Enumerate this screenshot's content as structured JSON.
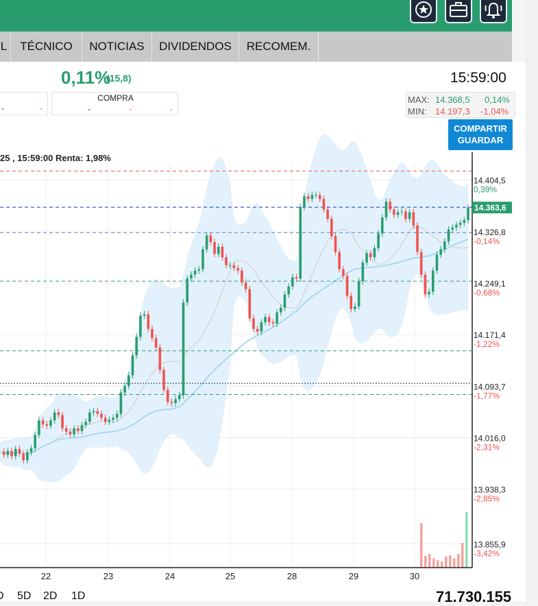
{
  "tabs": [
    "L",
    "TÉCNICO",
    "NOTICIAS",
    "DIVIDENDOS",
    "RECOMEM."
  ],
  "change": {
    "pct": "0,11%",
    "points": "(15,8)"
  },
  "time": "15:59:00",
  "buy_label": "COMPRA",
  "buy_values": [
    "-",
    "-",
    "-",
    "-",
    "-"
  ],
  "stats": {
    "max_label": "MAX:",
    "max_value": "14.368,5",
    "max_pct": "0,14%",
    "min_label": "MIN:",
    "min_value": "14.197,3",
    "min_pct": "-1,04%"
  },
  "share_button": {
    "line1": "COMPARTIR",
    "line2": "GUARDAR"
  },
  "chart_header": "25 , 15:59:00 Renta: 1,98%",
  "periods": [
    "D",
    "5D",
    "2D",
    "1D"
  ],
  "volume_total": "71.730.155",
  "colors": {
    "green": "#2a9d6e",
    "red": "#ef5350",
    "blue": "#1188d6",
    "band": "#d8ecfa"
  },
  "chart_data": {
    "type": "candlestick",
    "x_ticks": [
      "22",
      "23",
      "24",
      "25",
      "28",
      "29",
      "30"
    ],
    "y_ticks": [
      {
        "value": 14404.5,
        "label": "14.404,5",
        "pct": "0,39%"
      },
      {
        "value": 14326.8,
        "label": "14.326,8",
        "pct": "-0,14%"
      },
      {
        "value": 14249.1,
        "label": "14.249,1",
        "pct": "-0,68%"
      },
      {
        "value": 14171.4,
        "label": "14.171,4",
        "pct": "-1,22%"
      },
      {
        "value": 14093.7,
        "label": "14.093,7",
        "pct": "-1,77%"
      },
      {
        "value": 14016.0,
        "label": "14.016,0",
        "pct": "-2,31%"
      },
      {
        "value": 13938.3,
        "label": "13.938,3",
        "pct": "-2,85%"
      },
      {
        "value": 13855.9,
        "label": "13.855,9",
        "pct": "-3,42%"
      }
    ],
    "current_price": {
      "value": 14363.6,
      "label": "14.363,6"
    },
    "y_range": [
      13820,
      14430
    ],
    "reference_lines": [
      {
        "value": 14418,
        "color": "#ef5350"
      },
      {
        "value": 14363.6,
        "color": "#1a35d6"
      },
      {
        "value": 14325,
        "color": "#5b8fd6"
      },
      {
        "value": 14252,
        "color": "#2a9d6e"
      },
      {
        "value": 14147,
        "color": "#2a9d6e"
      },
      {
        "value": 14098,
        "color": "#333333"
      },
      {
        "value": 14081,
        "color": "#2a9d6e"
      }
    ],
    "close_path": [
      13995,
      13990,
      13996,
      13988,
      13999,
      13992,
      13982,
      13994,
      14000,
      14020,
      14042,
      14036,
      14034,
      14042,
      14054,
      14050,
      14030,
      14025,
      14021,
      14030,
      14026,
      14035,
      14040,
      14054,
      14056,
      14052,
      14046,
      14040,
      14043,
      14046,
      14052,
      14084,
      14094,
      14110,
      14140,
      14168,
      14200,
      14202,
      14180,
      14166,
      14152,
      14118,
      14088,
      14070,
      14068,
      14074,
      14080,
      14220,
      14256,
      14262,
      14268,
      14270,
      14300,
      14321,
      14311,
      14293,
      14304,
      14288,
      14276,
      14276,
      14272,
      14268,
      14250,
      14240,
      14196,
      14180,
      14176,
      14190,
      14198,
      14190,
      14188,
      14205,
      14212,
      14232,
      14244,
      14258,
      14256,
      14364,
      14380,
      14376,
      14382,
      14382,
      14376,
      14360,
      14346,
      14320,
      14296,
      14270,
      14260,
      14230,
      14210,
      14214,
      14252,
      14280,
      14294,
      14288,
      14302,
      14324,
      14348,
      14372,
      14360,
      14352,
      14356,
      14357,
      14346,
      14356,
      14336,
      14296,
      14262,
      14232,
      14236,
      14268,
      14292,
      14300,
      14312,
      14330,
      14333,
      14337,
      14340,
      14344,
      14363
    ],
    "volume": [
      0.72,
      0.19,
      0.22,
      0.15,
      0.12,
      0.1,
      0.18,
      0.2,
      0.15,
      0.22,
      0.4,
      0.9
    ]
  }
}
